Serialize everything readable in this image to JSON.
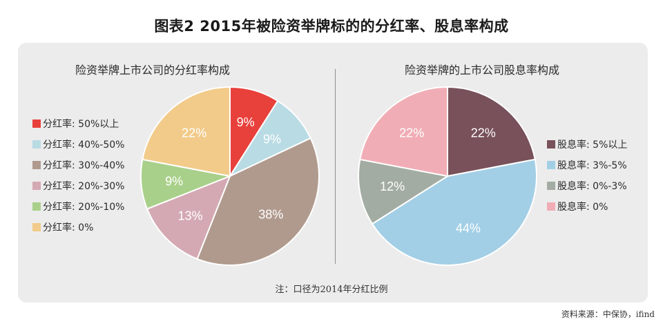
{
  "title": "图表2   2015年被险资举牌标的的分红率、股息率构成",
  "note": "注：口径为2014年分红比例",
  "source": "资料来源：中保协，ifind",
  "chart_data": [
    {
      "type": "pie",
      "title": "险资举牌上市公司的分红率构成",
      "slices": [
        {
          "label": "分红率: 50%以上",
          "value": 9,
          "display": "9%",
          "color": "#e8403b"
        },
        {
          "label": "分红率: 40%-50%",
          "value": 9,
          "display": "9%",
          "color": "#b9dbe4"
        },
        {
          "label": "分红率: 30%-40%",
          "value": 38,
          "display": "38%",
          "color": "#b09a8e"
        },
        {
          "label": "分红率: 20%-30%",
          "value": 13,
          "display": "13%",
          "color": "#d4a9b4"
        },
        {
          "label": "分红率: 20%-10%",
          "value": 9,
          "display": "9%",
          "color": "#a9d08a"
        },
        {
          "label": "分红率: 0%",
          "value": 22,
          "display": "22%",
          "color": "#f2cb8a"
        }
      ]
    },
    {
      "type": "pie",
      "title": "险资举牌的上市公司股息率构成",
      "slices": [
        {
          "label": "股息率: 5%以上",
          "value": 22,
          "display": "22%",
          "color": "#78515a"
        },
        {
          "label": "股息率: 3%-5%",
          "value": 44,
          "display": "44%",
          "color": "#a3cfe6"
        },
        {
          "label": "股息率: 0%-3%",
          "value": 12,
          "display": "12%",
          "color": "#a3aca2"
        },
        {
          "label": "股息率: 0%",
          "value": 22,
          "display": "22%",
          "color": "#f1adb5"
        }
      ]
    }
  ]
}
